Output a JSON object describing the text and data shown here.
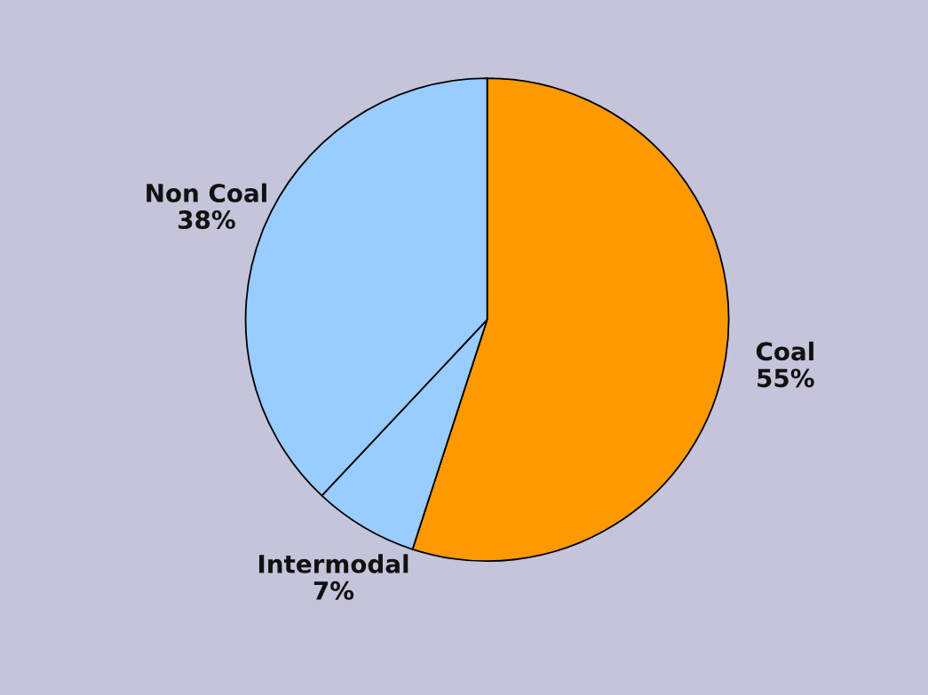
{
  "chart_data": {
    "type": "pie",
    "categories": [
      "Coal",
      "Intermodal",
      "Non Coal"
    ],
    "values": [
      55,
      7,
      38
    ],
    "value_labels": [
      "55%",
      "7%",
      "38%"
    ],
    "colors": [
      "#ff9900",
      "#99ccff",
      "#99ccff"
    ]
  }
}
